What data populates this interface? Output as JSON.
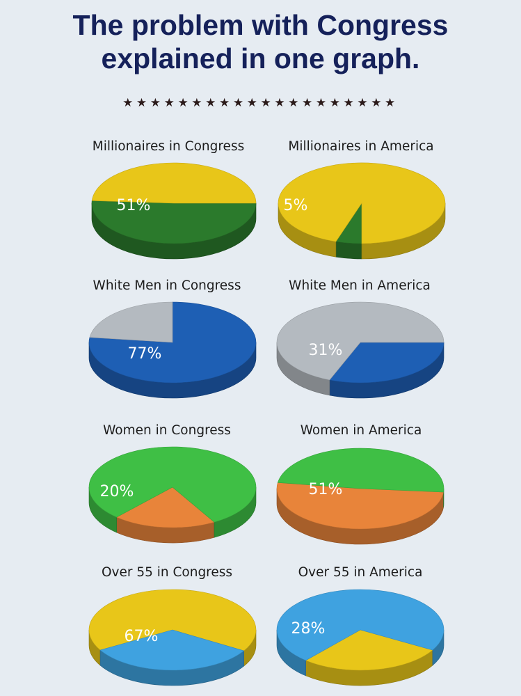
{
  "header": {
    "title_line1": "The problem with Congress",
    "title_line2": "explained in one graph.",
    "stars": "★★★★★★★★★★★★★★★★★★★★"
  },
  "colors": {
    "yellow": "#e8c619",
    "dark_green": "#2b7a2c",
    "blue": "#1e5fb4",
    "gray": "#b4bac0",
    "green": "#3fbf45",
    "orange": "#e8843a",
    "sky_blue": "#3fa2e0"
  },
  "chart_data": [
    {
      "type": "pie",
      "title": "Millionaires in Congress",
      "value_label": "51%",
      "slices": [
        {
          "value": 51,
          "color": "#2b7a2c"
        },
        {
          "value": 49,
          "color": "#e8c619"
        }
      ]
    },
    {
      "type": "pie",
      "title": "Millionaires in America",
      "value_label": "5%",
      "slices": [
        {
          "value": 5,
          "color": "#2b7a2c"
        },
        {
          "value": 95,
          "color": "#e8c619"
        }
      ]
    },
    {
      "type": "pie",
      "title": "White Men in Congress",
      "value_label": "77%",
      "slices": [
        {
          "value": 77,
          "color": "#1e5fb4"
        },
        {
          "value": 23,
          "color": "#b4bac0"
        }
      ]
    },
    {
      "type": "pie",
      "title": "White Men in America",
      "value_label": "31%",
      "slices": [
        {
          "value": 31,
          "color": "#1e5fb4"
        },
        {
          "value": 69,
          "color": "#b4bac0"
        }
      ]
    },
    {
      "type": "pie",
      "title": "Women in Congress",
      "value_label": "20%",
      "slices": [
        {
          "value": 20,
          "color": "#e8843a"
        },
        {
          "value": 80,
          "color": "#3fbf45"
        }
      ]
    },
    {
      "type": "pie",
      "title": "Women in America",
      "value_label": "51%",
      "slices": [
        {
          "value": 51,
          "color": "#e8843a"
        },
        {
          "value": 49,
          "color": "#3fbf45"
        }
      ]
    },
    {
      "type": "pie",
      "title": "Over 55 in Congress",
      "value_label": "67%",
      "slices": [
        {
          "value": 67,
          "color": "#e8c619"
        },
        {
          "value": 33,
          "color": "#3fa2e0"
        }
      ]
    },
    {
      "type": "pie",
      "title": "Over 55 in America",
      "value_label": "28%",
      "slices": [
        {
          "value": 28,
          "color": "#e8c619"
        },
        {
          "value": 72,
          "color": "#3fa2e0"
        }
      ]
    }
  ]
}
